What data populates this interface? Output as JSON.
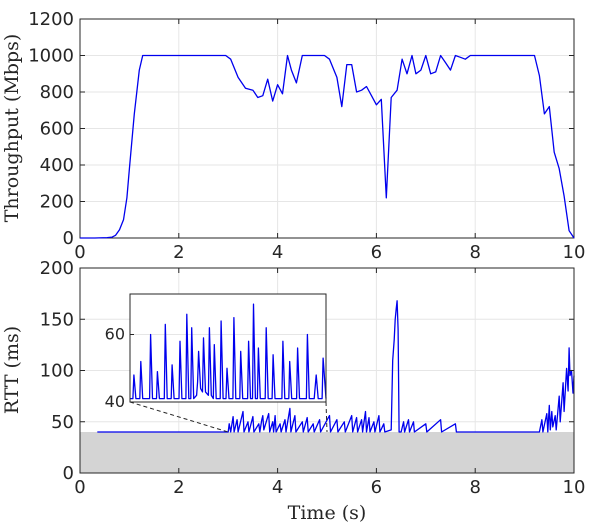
{
  "chart_data": [
    {
      "type": "line",
      "xlabel": "",
      "ylabel": "Throughput (Mbps)",
      "xlim": [
        0,
        10
      ],
      "ylim": [
        0,
        1200
      ],
      "xticks": [
        0,
        2,
        4,
        6,
        8,
        10
      ],
      "yticks": [
        0,
        200,
        400,
        600,
        800,
        1000,
        1200
      ],
      "grid": true,
      "series": [
        {
          "color": "#0000ee",
          "x": [
            0.0,
            0.3,
            0.55,
            0.65,
            0.72,
            0.8,
            0.88,
            0.95,
            1.0,
            1.1,
            1.2,
            1.27,
            1.35,
            1.6,
            2.0,
            2.5,
            2.95,
            3.05,
            3.2,
            3.35,
            3.5,
            3.6,
            3.7,
            3.8,
            3.9,
            4.0,
            4.1,
            4.2,
            4.28,
            4.38,
            4.5,
            4.6,
            4.8,
            4.95,
            5.05,
            5.2,
            5.3,
            5.4,
            5.5,
            5.6,
            5.7,
            5.8,
            5.9,
            6.0,
            6.1,
            6.2,
            6.3,
            6.42,
            6.52,
            6.62,
            6.72,
            6.8,
            6.9,
            7.0,
            7.1,
            7.2,
            7.3,
            7.4,
            7.5,
            7.6,
            7.7,
            7.8,
            7.9,
            8.0,
            8.2,
            8.6,
            8.9,
            9.1,
            9.2,
            9.3,
            9.4,
            9.5,
            9.6,
            9.7,
            9.8,
            9.9,
            10.0
          ],
          "y": [
            0,
            0,
            2,
            5,
            15,
            45,
            100,
            220,
            380,
            680,
            920,
            1000,
            1000,
            1000,
            1000,
            1000,
            1000,
            980,
            880,
            820,
            810,
            770,
            780,
            870,
            750,
            840,
            790,
            1000,
            920,
            850,
            1000,
            1000,
            1000,
            1000,
            980,
            880,
            720,
            950,
            950,
            800,
            810,
            830,
            780,
            730,
            760,
            220,
            770,
            810,
            980,
            900,
            1000,
            900,
            920,
            1000,
            900,
            910,
            1000,
            960,
            920,
            1000,
            990,
            980,
            1000,
            1000,
            1000,
            1000,
            1000,
            1000,
            1000,
            890,
            680,
            720,
            470,
            380,
            230,
            40,
            0
          ]
        }
      ]
    },
    {
      "type": "line",
      "xlabel": "Time (s)",
      "ylabel": "RTT (ms)",
      "xlim": [
        0,
        10
      ],
      "ylim": [
        0,
        200
      ],
      "xticks": [
        0,
        2,
        4,
        6,
        8,
        10
      ],
      "yticks": [
        0,
        50,
        100,
        150,
        200
      ],
      "grid": true,
      "baseline": 40,
      "baseline_fill": "#d4d4d4",
      "series": [
        {
          "color": "#0000ee",
          "x": [
            0.35,
            2.9,
            3.0,
            3.02,
            3.05,
            3.1,
            3.12,
            3.18,
            3.2,
            3.3,
            3.32,
            3.4,
            3.42,
            3.5,
            3.52,
            3.62,
            3.64,
            3.68,
            3.7,
            3.72,
            3.82,
            3.84,
            3.9,
            3.92,
            3.95,
            3.97,
            4.05,
            4.07,
            4.15,
            4.17,
            4.25,
            4.27,
            4.35,
            4.37,
            4.5,
            4.52,
            4.6,
            4.62,
            4.72,
            4.74,
            4.85,
            4.87,
            5.05,
            5.07,
            5.2,
            5.22,
            5.35,
            5.37,
            5.5,
            5.52,
            5.6,
            5.62,
            5.7,
            5.72,
            5.78,
            5.8,
            5.85,
            5.87,
            5.95,
            5.97,
            6.05,
            6.07,
            6.15,
            6.17,
            6.3,
            6.33,
            6.36,
            6.38,
            6.4,
            6.42,
            6.44,
            6.46,
            6.5,
            6.55,
            6.57,
            6.65,
            6.67,
            6.75,
            6.77,
            7.0,
            7.02,
            7.3,
            7.32,
            7.6,
            7.62,
            8.5,
            9.3,
            9.35,
            9.37,
            9.45,
            9.47,
            9.5,
            9.52,
            9.55,
            9.57,
            9.62,
            9.64,
            9.7,
            9.72,
            9.78,
            9.8,
            9.85,
            9.88,
            9.9,
            9.92,
            9.95,
            9.98,
            10.0
          ],
          "y": [
            40,
            40,
            40,
            48,
            40,
            55,
            40,
            52,
            40,
            60,
            40,
            50,
            40,
            55,
            40,
            48,
            40,
            52,
            56,
            42,
            58,
            40,
            50,
            40,
            56,
            40,
            48,
            40,
            52,
            40,
            63,
            40,
            56,
            40,
            50,
            40,
            54,
            40,
            48,
            40,
            52,
            40,
            56,
            40,
            52,
            40,
            50,
            40,
            56,
            40,
            54,
            40,
            52,
            40,
            60,
            40,
            54,
            40,
            50,
            40,
            56,
            40,
            48,
            40,
            42,
            110,
            130,
            150,
            160,
            168,
            140,
            40,
            40,
            50,
            40,
            52,
            40,
            50,
            40,
            48,
            40,
            52,
            40,
            48,
            40,
            40,
            40,
            52,
            40,
            58,
            40,
            66,
            42,
            60,
            45,
            56,
            42,
            75,
            50,
            88,
            60,
            102,
            80,
            122,
            95,
            100,
            78,
            95
          ]
        }
      ],
      "inset": {
        "xlim": [
          3,
          5
        ],
        "ylim": [
          40,
          72
        ],
        "yticks": [
          40,
          60
        ],
        "series": [
          {
            "color": "#0000ee",
            "x": [
              3.0,
              3.03,
              3.04,
              3.06,
              3.1,
              3.11,
              3.13,
              3.2,
              3.21,
              3.23,
              3.27,
              3.28,
              3.3,
              3.35,
              3.36,
              3.38,
              3.42,
              3.43,
              3.45,
              3.5,
              3.51,
              3.53,
              3.57,
              3.58,
              3.6,
              3.62,
              3.63,
              3.65,
              3.68,
              3.69,
              3.7,
              3.72,
              3.74,
              3.75,
              3.77,
              3.8,
              3.81,
              3.83,
              3.85,
              3.86,
              3.88,
              3.92,
              3.93,
              3.95,
              3.98,
              3.99,
              4.01,
              4.05,
              4.06,
              4.08,
              4.12,
              4.13,
              4.15,
              4.2,
              4.21,
              4.23,
              4.25,
              4.26,
              4.28,
              4.3,
              4.31,
              4.33,
              4.38,
              4.39,
              4.41,
              4.45,
              4.46,
              4.48,
              4.55,
              4.56,
              4.58,
              4.62,
              4.63,
              4.65,
              4.7,
              4.71,
              4.73,
              4.8,
              4.81,
              4.83,
              4.88,
              4.9,
              4.92,
              4.96,
              4.97,
              5.0
            ],
            "y": [
              41,
              41,
              48,
              41,
              41,
              52,
              41,
              41,
              60,
              41,
              41,
              49,
              41,
              41,
              63,
              41,
              41,
              51,
              41,
              41,
              58,
              41,
              41,
              66,
              41,
              41,
              62,
              41,
              42,
              46,
              55,
              44,
              43,
              59,
              43,
              42,
              62,
              42,
              41,
              57,
              41,
              41,
              64,
              41,
              41,
              50,
              41,
              41,
              65,
              41,
              41,
              55,
              41,
              41,
              58,
              41,
              41,
              69,
              41,
              41,
              56,
              41,
              41,
              62,
              41,
              41,
              54,
              41,
              41,
              58,
              41,
              41,
              52,
              41,
              41,
              56,
              41,
              41,
              60,
              41,
              41,
              48,
              41,
              41,
              53,
              41
            ]
          }
        ]
      }
    }
  ]
}
